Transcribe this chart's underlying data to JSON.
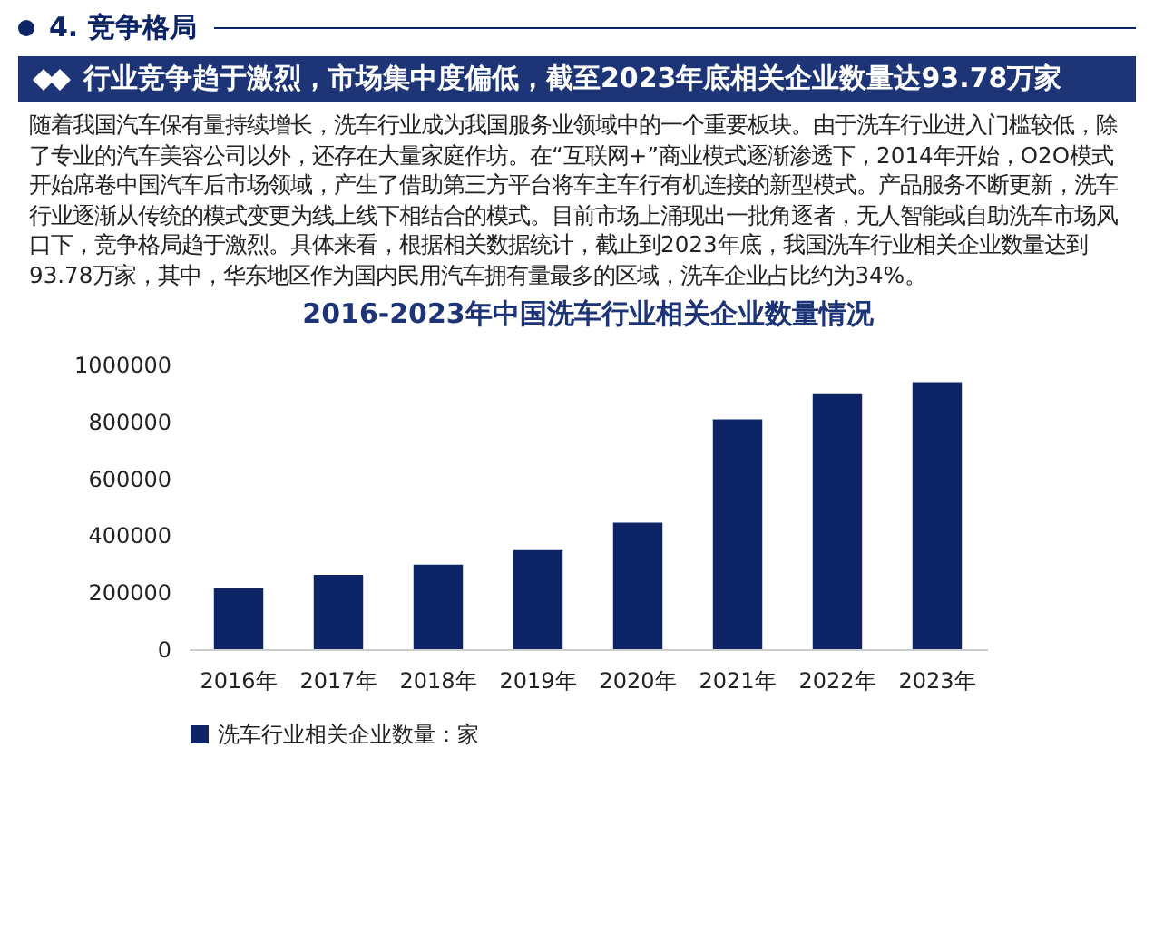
{
  "chart_data": {
    "type": "bar",
    "title": "2016-2023年中国洗车行业相关企业数量情况",
    "annotations": [
      "4. 竞争格局",
      "行业竞争趋于激烈，市场集中度偏低，截至2023年底相关企业数量达93.78万家",
      "随着我国汽车保有量持续增长，洗车行业成为我国服务业领域中的一个重要板块。由于洗车行业进入门槛较低，除了专业的汽车美容公司以外，还存在大量家庭作坊。在“互联网+”商业模式逐渐渗透下，2014年开始，O2O模式开始席卷中国汽车后市场领域，产生了借助第三方平台将车主车行有机连接的新型模式。产品服务不断更新，洗车行业逐渐从传统的模式变更为线上线下相结合的模式。目前市场上涌现出一批角逐者，无人智能或自助洗车市场风口下，竞争格局趋于激烈。具体来看，根据相关数据统计，截止到2023年底，我国洗车行业相关企业数量达到93.78万家，其中，华东地区作为国内民用汽车拥有量最多的区域，洗车企业占比约为34%。"
    ],
    "categories": [
      "2016年",
      "2017年",
      "2018年",
      "2019年",
      "2020年",
      "2021年",
      "2022年",
      "2023年"
    ],
    "series": [
      {
        "name": "洗车行业相关企业数量：家",
        "color": "#0d2567",
        "values": [
          215000,
          261000,
          297000,
          348000,
          444000,
          807000,
          896000,
          937800
        ]
      }
    ],
    "ylim": [
      0,
      1000000
    ],
    "yticks": [
      0,
      200000,
      400000,
      600000,
      800000,
      1000000
    ],
    "grid": false,
    "legend": "bottom"
  }
}
